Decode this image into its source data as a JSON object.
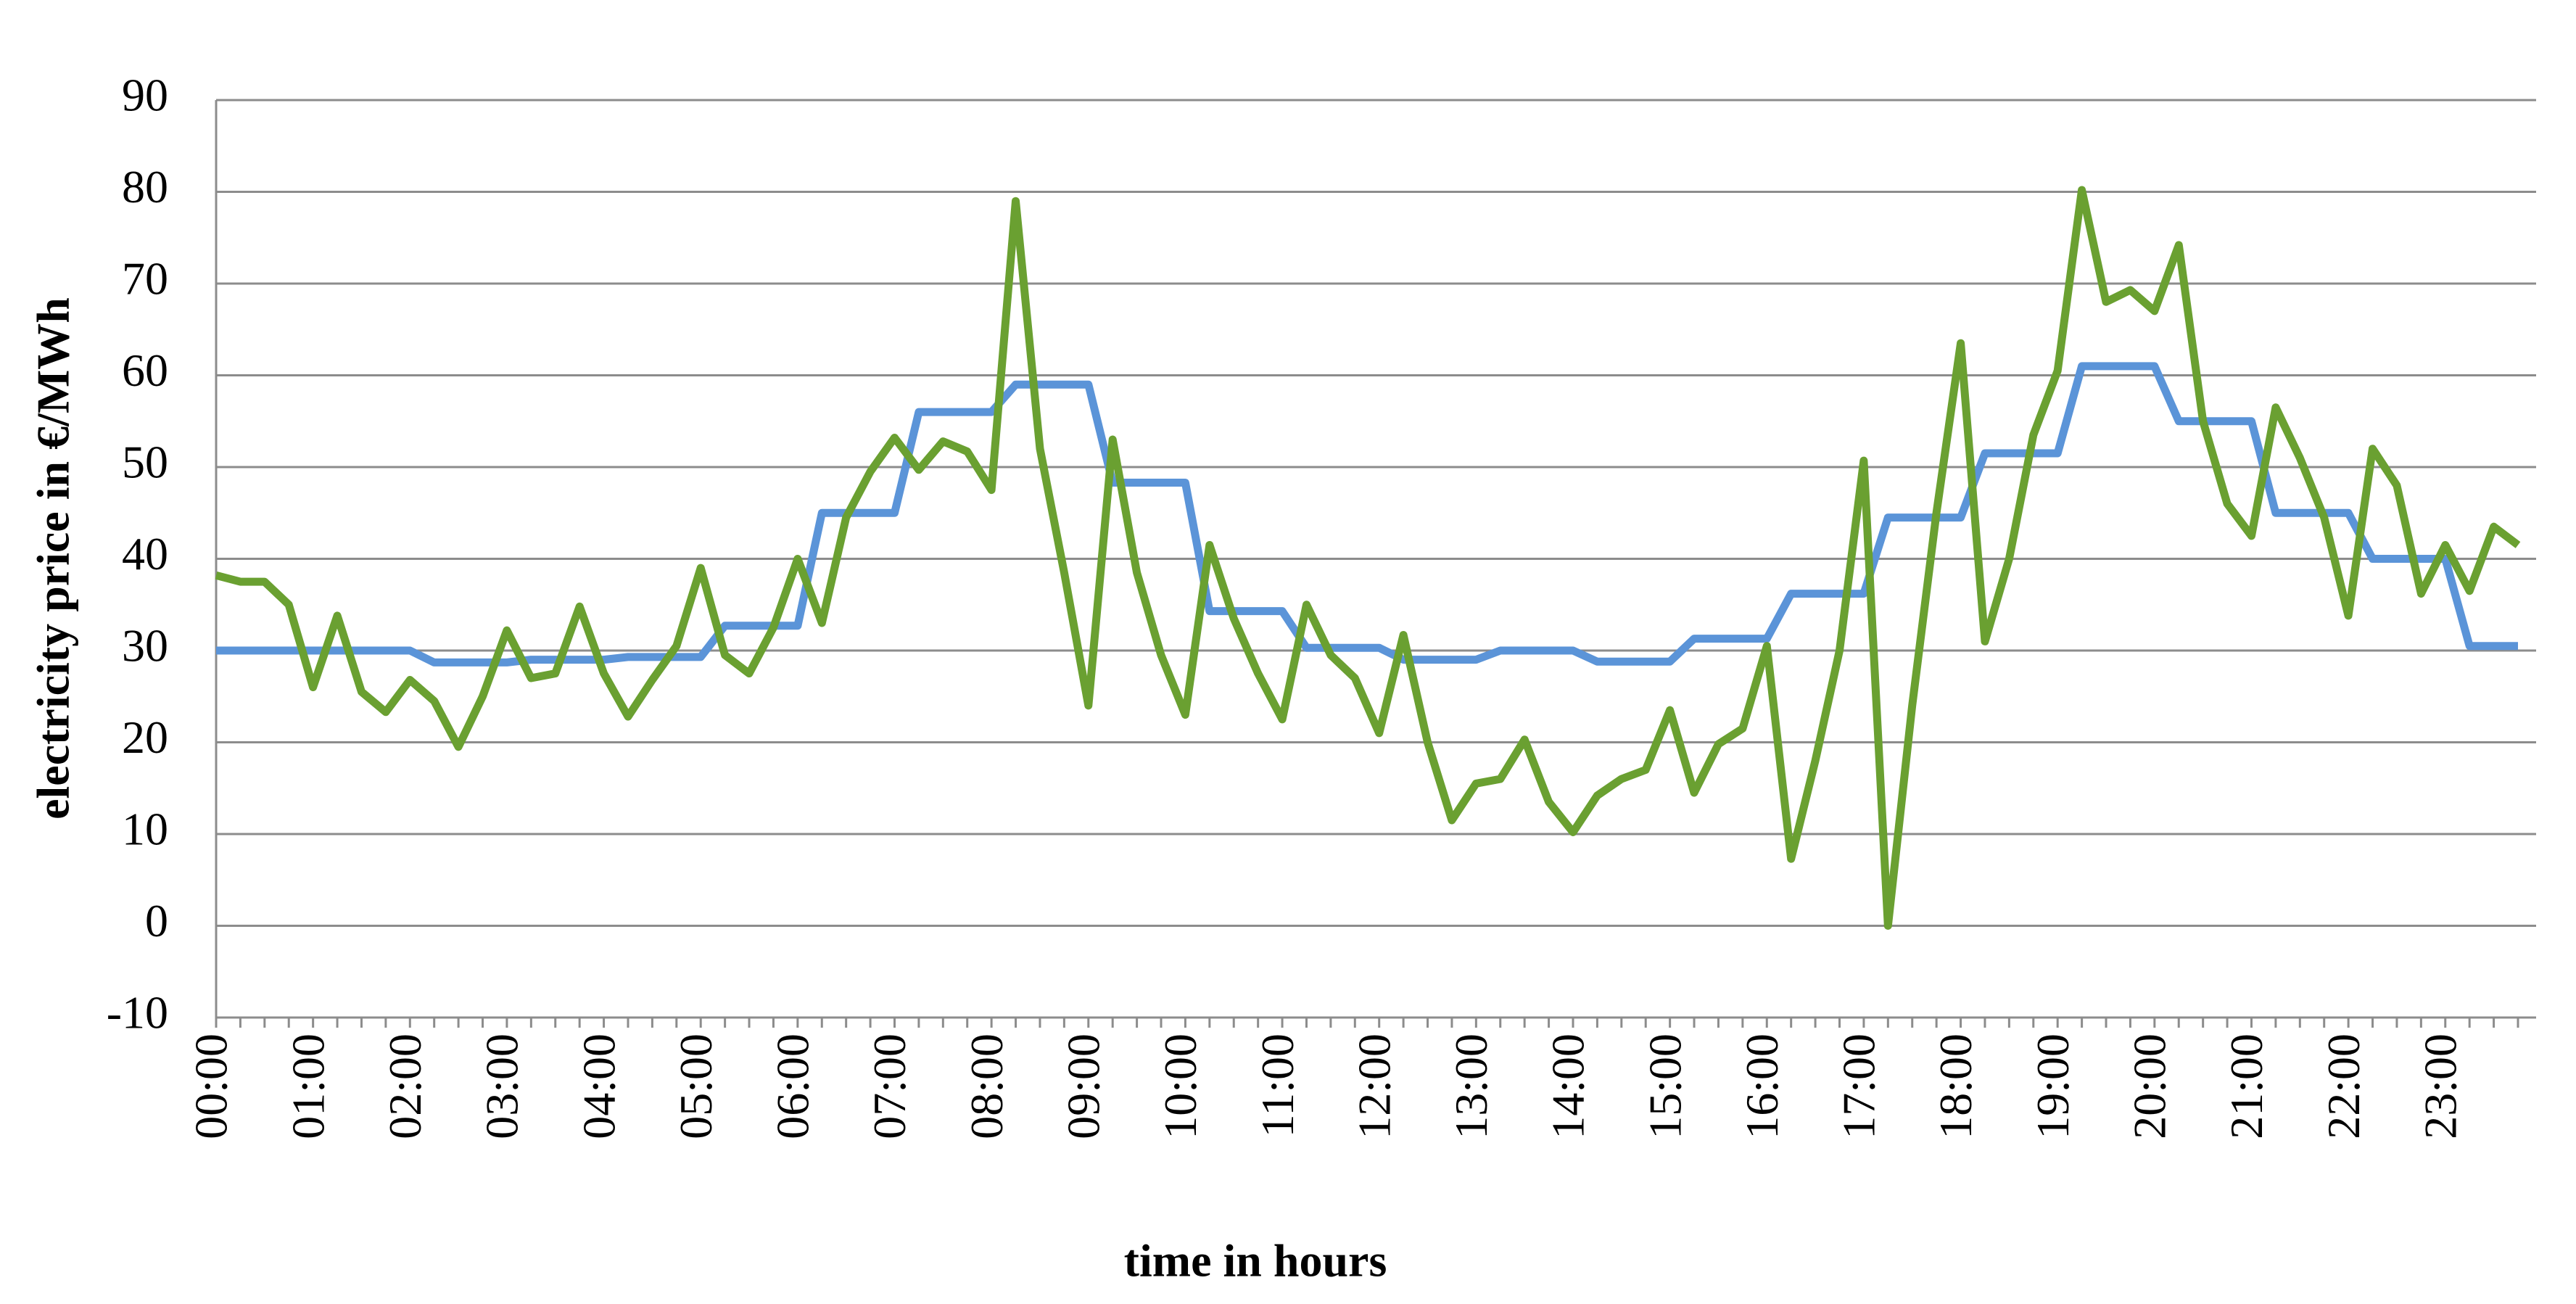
{
  "chart_data": {
    "type": "line",
    "y_label": "electricity price in €/MWh",
    "x_label": "time in hours",
    "categories": [
      "00:00",
      null,
      null,
      null,
      "01:00",
      null,
      null,
      null,
      "02:00",
      null,
      null,
      null,
      "03:00",
      null,
      null,
      null,
      "04:00",
      null,
      null,
      null,
      "05:00",
      null,
      null,
      null,
      "06:00",
      null,
      null,
      null,
      "07:00",
      null,
      null,
      null,
      "08:00",
      null,
      null,
      null,
      "09:00",
      null,
      null,
      null,
      "10:00",
      null,
      null,
      null,
      "11:00",
      null,
      null,
      null,
      "12:00",
      null,
      null,
      null,
      "13:00",
      null,
      null,
      null,
      "14:00",
      null,
      null,
      null,
      "15:00",
      null,
      null,
      null,
      "16:00",
      null,
      null,
      null,
      "17:00",
      null,
      null,
      null,
      "18:00",
      null,
      null,
      null,
      "19:00",
      null,
      null,
      null,
      "20:00",
      null,
      null,
      null,
      "21:00",
      null,
      null,
      null,
      "22:00",
      null,
      null,
      null,
      "23:00",
      null,
      null,
      null
    ],
    "series": [
      {
        "color": "#5b94d8",
        "values": [
          30,
          30,
          30,
          30,
          30,
          30,
          30,
          30,
          30,
          28.7,
          28.7,
          28.7,
          28.7,
          29,
          29,
          29,
          29,
          29.3,
          29.3,
          29.3,
          29.3,
          32.7,
          32.7,
          32.7,
          32.7,
          45,
          45,
          45,
          45,
          56,
          56,
          56,
          56,
          59,
          59,
          59,
          59,
          48.3,
          48.3,
          48.3,
          48.3,
          34.3,
          34.3,
          34.3,
          34.3,
          30.3,
          30.3,
          30.3,
          30.3,
          29,
          29,
          29,
          29,
          30,
          30,
          30,
          30,
          28.8,
          28.8,
          28.8,
          28.8,
          31.3,
          31.3,
          31.3,
          31.3,
          36.2,
          36.2,
          36.2,
          36.2,
          44.5,
          44.5,
          44.5,
          44.5,
          51.5,
          51.5,
          51.5,
          51.5,
          61,
          61,
          61,
          61,
          55,
          55,
          55,
          55,
          45,
          45,
          45,
          45,
          40,
          40,
          40,
          40,
          30.5,
          30.5,
          30.5
        ]
      },
      {
        "color": "#6aa031",
        "values": [
          38.2,
          37.5,
          37.5,
          35,
          26,
          33.8,
          25.5,
          23.3,
          26.8,
          24.5,
          19.5,
          25,
          32.2,
          27,
          27.5,
          34.8,
          27.5,
          22.8,
          26.8,
          30.5,
          39,
          29.5,
          27.5,
          32.5,
          40,
          33,
          44.5,
          49.5,
          53.2,
          49.7,
          52.8,
          51.7,
          47.5,
          79,
          52,
          38.5,
          24,
          53,
          38.5,
          29.5,
          23,
          41.5,
          33.5,
          27.5,
          22.5,
          35,
          29.5,
          27,
          21,
          31.7,
          20,
          11.5,
          15.5,
          16,
          20.3,
          13.5,
          10.2,
          14.2,
          16,
          17,
          23.5,
          14.5,
          19.8,
          21.5,
          30.5,
          7.3,
          18,
          30,
          50.7,
          0,
          24,
          45,
          63.5,
          31,
          40,
          53.5,
          60.5,
          80.2,
          68,
          69.3,
          67,
          74.2,
          55,
          46,
          42.5,
          56.5,
          51,
          44.5,
          33.8,
          52,
          48,
          36.2,
          41.5,
          36.5,
          43.5,
          41.5
        ]
      }
    ],
    "ylim": [
      -10,
      90
    ],
    "yticks": [
      -10,
      0,
      10,
      20,
      30,
      40,
      50,
      60,
      70,
      80,
      90
    ],
    "grid": true
  }
}
